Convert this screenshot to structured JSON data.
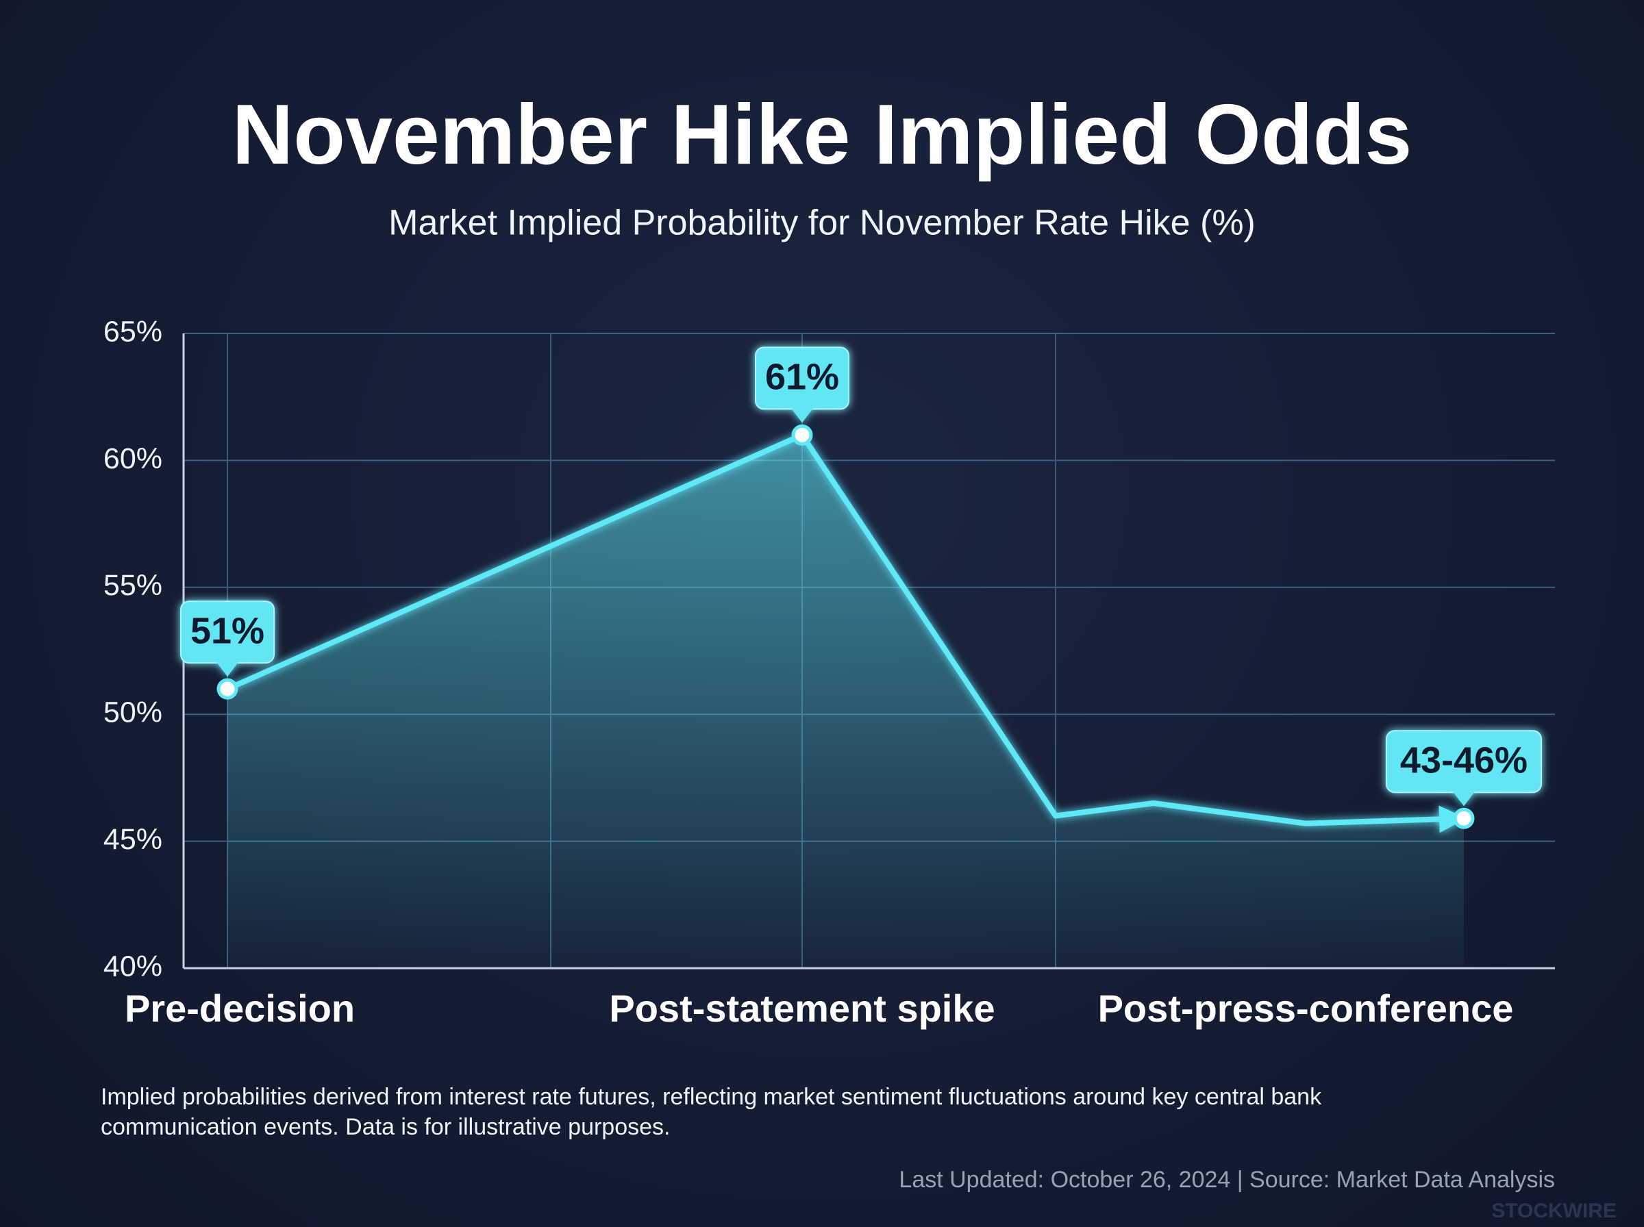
{
  "chart_data": {
    "type": "line",
    "title": "November Hike Implied Odds",
    "subtitle": "Market Implied Probability for November Rate Hike (%)",
    "categories": [
      "Pre-decision",
      "Post-statement spike",
      null,
      null,
      "Post-press-conference",
      null
    ],
    "series": [
      {
        "name": "Implied probability",
        "color": "#5fe9f6",
        "values": [
          51,
          61,
          46,
          46.5,
          45.7,
          45.9
        ],
        "value_labels": [
          "51%",
          "61%",
          null,
          null,
          null,
          "43-46%"
        ]
      }
    ],
    "ylim": [
      40,
      65
    ],
    "yticks": [
      {
        "value": 40,
        "label": "40%"
      },
      {
        "value": 45,
        "label": "45%"
      },
      {
        "value": 50,
        "label": "50%"
      },
      {
        "value": 55,
        "label": "55%"
      },
      {
        "value": 60,
        "label": "60%"
      },
      {
        "value": 65,
        "label": "65%"
      }
    ],
    "grid": true,
    "note": "Implied probabilities derived from interest rate futures, reflecting market sentiment fluctuations around key central bank communication events. Data is for illustrative purposes.",
    "footer": "Last Updated: October 26, 2024 | Source: Market Data Analysis",
    "watermark": "STOCKWIRE"
  }
}
